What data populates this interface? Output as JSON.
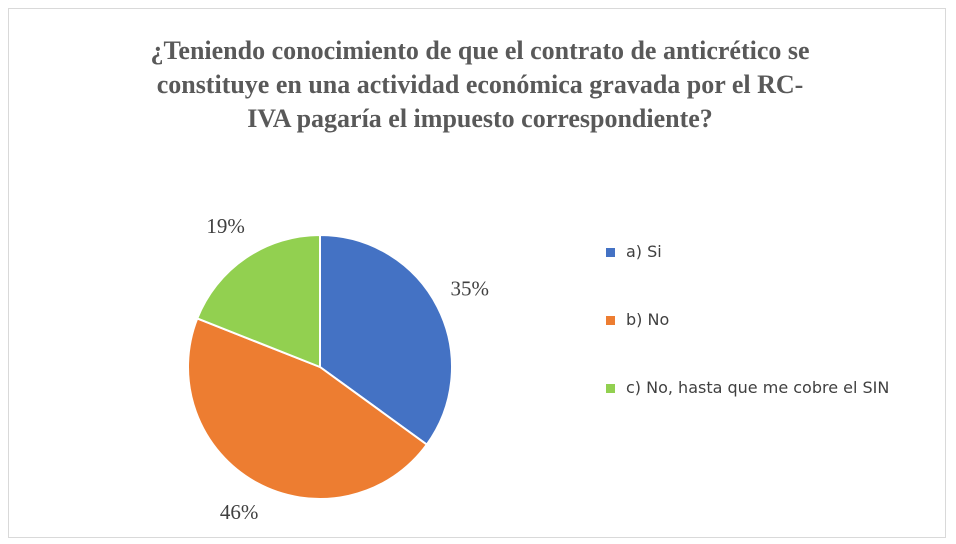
{
  "chart_data": {
    "type": "pie",
    "title": "¿Teniendo conocimiento de que el contrato de anticrético se constituye en una actividad económica gravada por el RC-IVA pagaría el impuesto correspondiente?",
    "categories": [
      "a) Si",
      "b) No",
      "c) No, hasta que me cobre el SIN"
    ],
    "values": [
      35,
      46,
      19
    ],
    "value_labels": [
      "35%",
      "46%",
      "19%"
    ],
    "colors": [
      "#4472c4",
      "#ed7d31",
      "#92d050"
    ],
    "legend": "right"
  }
}
